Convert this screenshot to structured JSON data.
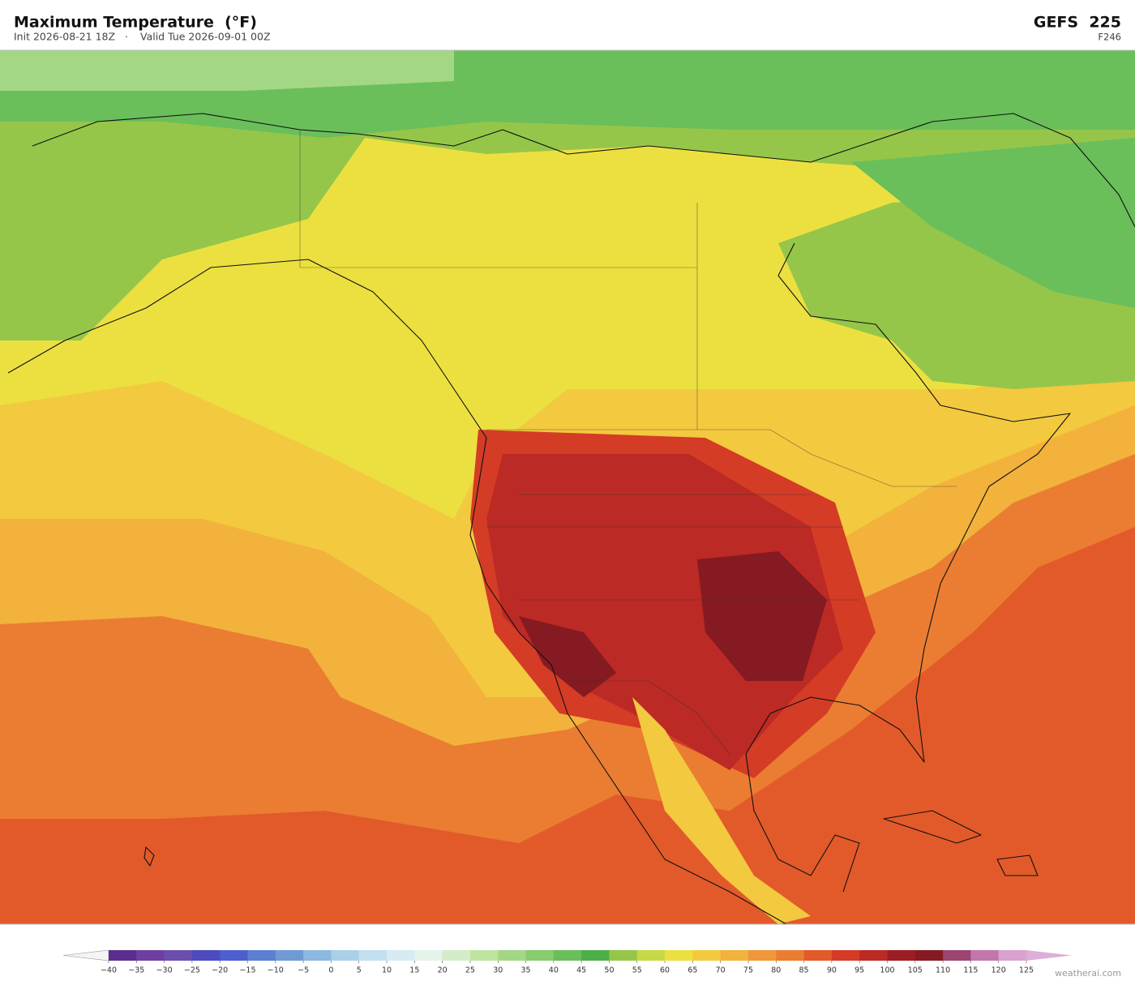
{
  "header": {
    "title": "Maximum Temperature  (°F)",
    "init": "Init 2026-08-21 18Z",
    "valid": "Valid Tue 2026-09-01 00Z",
    "model": "GEFS  225",
    "forecast_hour": "F246"
  },
  "colorbar": {
    "ticks": [
      {
        "value": -40,
        "label": "−40"
      },
      {
        "value": -35,
        "label": "−35"
      },
      {
        "value": -30,
        "label": "−30"
      },
      {
        "value": -25,
        "label": "−25"
      },
      {
        "value": -20,
        "label": "−20"
      },
      {
        "value": -15,
        "label": "−15"
      },
      {
        "value": -10,
        "label": "−10"
      },
      {
        "value": -5,
        "label": "−5"
      },
      0,
      5,
      10,
      15,
      20,
      25,
      30,
      35,
      40,
      45,
      50,
      55,
      60,
      65,
      70,
      75,
      80,
      85,
      90,
      95,
      100,
      105,
      110,
      115,
      120,
      125
    ],
    "colors": [
      "#5b2d8e",
      "#6e3fa0",
      "#6a4fb0",
      "#4e4bbf",
      "#4d5fcf",
      "#5b80d1",
      "#6f9ad6",
      "#8db8e0",
      "#a9cfe9",
      "#c2e0ef",
      "#d6ebf2",
      "#e5f3ea",
      "#d4ecc9",
      "#bfe3a0",
      "#a4d785",
      "#88cc6c",
      "#6abf5b",
      "#4daf4a",
      "#95c64a",
      "#c8d946",
      "#ece040",
      "#f3c93f",
      "#f2b23c",
      "#ef973a",
      "#ea7d32",
      "#e35a2a",
      "#d43c25",
      "#bb2a24",
      "#9e1d24",
      "#861a22",
      "#9b4570",
      "#c277ab",
      "#d9a2cf"
    ],
    "under_color": "#f4f4f4",
    "over_color": "#dcaed8"
  },
  "footer": {
    "credit": "weatherai.com"
  }
}
